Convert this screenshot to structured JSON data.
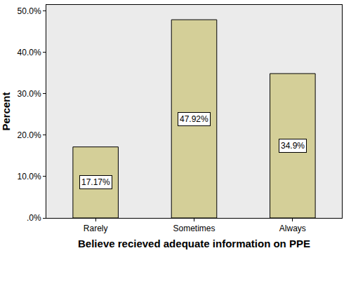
{
  "chart_data": {
    "type": "bar",
    "x_label": "Believe recieved adequate information on PPE",
    "y_label": "Percent",
    "categories": [
      "Rarely",
      "Sometimes",
      "Always"
    ],
    "values": [
      17.17,
      47.92,
      34.9
    ],
    "value_labels": [
      "17.17%",
      "47.92%",
      "34.9%"
    ],
    "data_labels": true,
    "color": "#d4cf98",
    "ylim": [
      0,
      51.5
    ],
    "yticks": [
      {
        "value": 0,
        "label": ".0%"
      },
      {
        "value": 10,
        "label": "10.0%"
      },
      {
        "value": 20,
        "label": "20.0%"
      },
      {
        "value": 30,
        "label": "30.0%"
      },
      {
        "value": 40,
        "label": "40.0%"
      },
      {
        "value": 50,
        "label": "50.0%"
      }
    ],
    "grid": false
  }
}
